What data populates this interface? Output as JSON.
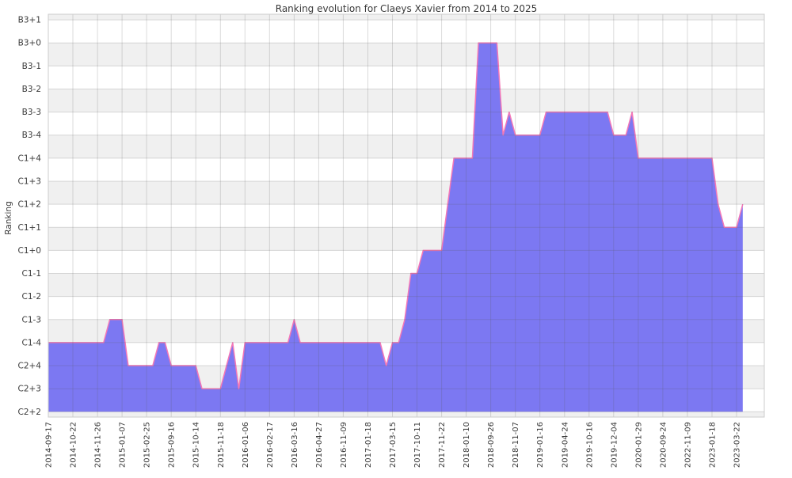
{
  "chart_data": {
    "type": "area",
    "title": "Ranking evolution for Claeys Xavier from 2014 to 2025",
    "ylabel": "Ranking",
    "xlabel": "",
    "grid": true,
    "legend": "none",
    "y_categories_bottom_to_top": [
      "C2+2",
      "C2+3",
      "C2+4",
      "C1-4",
      "C1-3",
      "C1-2",
      "C1-1",
      "C1+0",
      "C1+1",
      "C1+2",
      "C1+3",
      "C1+4",
      "B3-4",
      "B3-3",
      "B3-2",
      "B3-1",
      "B3+0",
      "B3+1"
    ],
    "x_tick_labels": [
      "2014-09-17",
      "2014-10-22",
      "2014-11-26",
      "2015-01-07",
      "2015-02-25",
      "2015-09-16",
      "2015-10-14",
      "2015-11-18",
      "2016-01-06",
      "2016-02-17",
      "2016-03-16",
      "2016-04-27",
      "2016-11-09",
      "2017-01-18",
      "2017-03-15",
      "2017-10-11",
      "2017-11-22",
      "2018-01-10",
      "2018-09-26",
      "2018-11-07",
      "2019-01-16",
      "2019-04-24",
      "2019-10-16",
      "2019-12-04",
      "2020-01-29",
      "2020-09-24",
      "2022-11-09",
      "2023-01-18",
      "2023-03-22"
    ],
    "values_at_ticks": [
      "C1-4",
      "C1-4",
      "C1-4",
      "C1-3",
      "C2+4",
      "C2+4",
      "C2+4",
      "C2+3",
      "C1-4",
      "C1-4",
      "C1-3",
      "C1-4",
      "C1-4",
      "C1-4",
      "C1-4",
      "C1-1",
      "C1+0",
      "C1+4",
      "B3+0",
      "B3-4",
      "B3-4",
      "B3-3",
      "B3-3",
      "B3-4",
      "C1+4",
      "C1+4",
      "C1+4",
      "C1+4",
      "C1+1"
    ],
    "points_per_tick_interval": 4,
    "series_run_length": [
      [
        "C1-4",
        10
      ],
      [
        "C1-3",
        3
      ],
      [
        "C2+4",
        5
      ],
      [
        "C1-4",
        2
      ],
      [
        "C2+4",
        5
      ],
      [
        "C2+3",
        4
      ],
      [
        "C2+4",
        1
      ],
      [
        "C1-4",
        1
      ],
      [
        "C2+3",
        1
      ],
      [
        "C1-4",
        8
      ],
      [
        "C1-3",
        1
      ],
      [
        "C1-4",
        14
      ],
      [
        "C2+4",
        1
      ],
      [
        "C1-4",
        2
      ],
      [
        "C1-3",
        1
      ],
      [
        "C1-1",
        2
      ],
      [
        "C1+0",
        4
      ],
      [
        "C1+2",
        1
      ],
      [
        "C1+4",
        4
      ],
      [
        "B3+0",
        4
      ],
      [
        "B3-4",
        1
      ],
      [
        "B3-3",
        1
      ],
      [
        "B3-4",
        5
      ],
      [
        "B3-3",
        11
      ],
      [
        "B3-4",
        3
      ],
      [
        "B3-3",
        1
      ],
      [
        "C1+4",
        13
      ],
      [
        "C1+2",
        1
      ],
      [
        "C1+1",
        3
      ],
      [
        "C1+2",
        1
      ]
    ],
    "colors": {
      "area_fill": "#7c78f2",
      "line": "#f478b7",
      "band_gray": "#f0f0f0",
      "band_white": "#ffffff",
      "gridline": "rgba(90,90,90,0.22)",
      "plot_border": "#cccccc",
      "text": "#3a3a3a"
    }
  }
}
